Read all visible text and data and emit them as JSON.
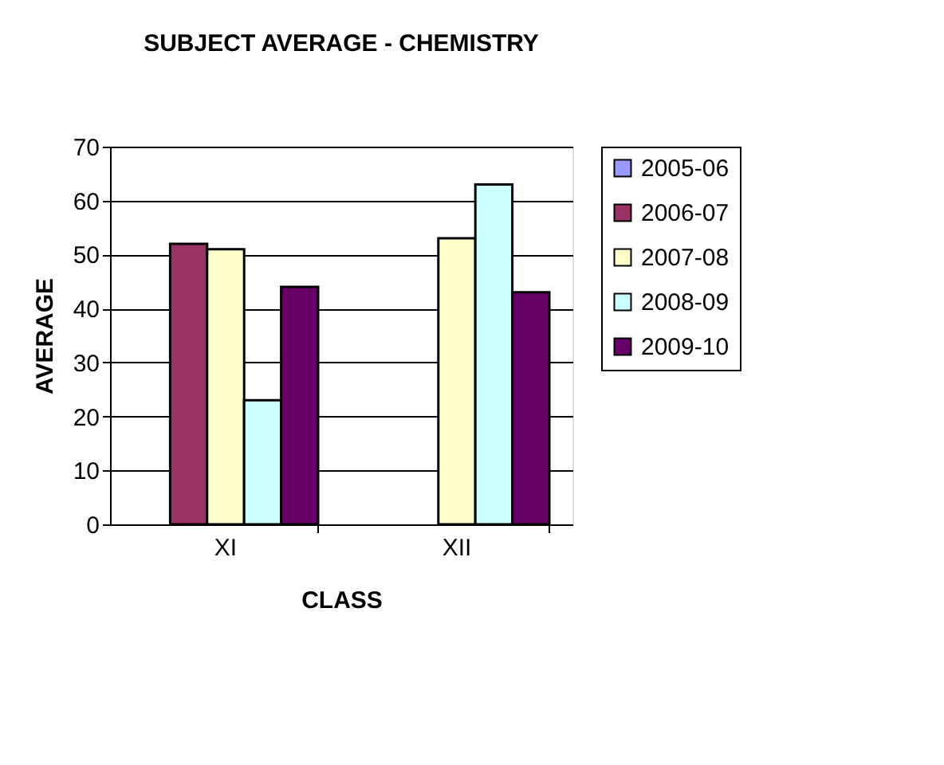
{
  "chart_data": {
    "type": "bar",
    "title": "SUBJECT AVERAGE - CHEMISTRY",
    "xlabel": "CLASS",
    "ylabel": "AVERAGE",
    "categories": [
      "XI",
      "XII"
    ],
    "series": [
      {
        "name": "2005-06",
        "color": "#9999ff",
        "values": [
          null,
          null
        ]
      },
      {
        "name": "2006-07",
        "color": "#993366",
        "values": [
          52,
          null
        ]
      },
      {
        "name": "2007-08",
        "color": "#ffffcc",
        "values": [
          51,
          53
        ]
      },
      {
        "name": "2008-09",
        "color": "#ccffff",
        "values": [
          23,
          63
        ]
      },
      {
        "name": "2009-10",
        "color": "#660066",
        "values": [
          44,
          43
        ]
      }
    ],
    "ylim": [
      0,
      70
    ],
    "yticks": [
      0,
      10,
      20,
      30,
      40,
      50,
      60,
      70
    ],
    "grid": "y",
    "legend": "right"
  }
}
